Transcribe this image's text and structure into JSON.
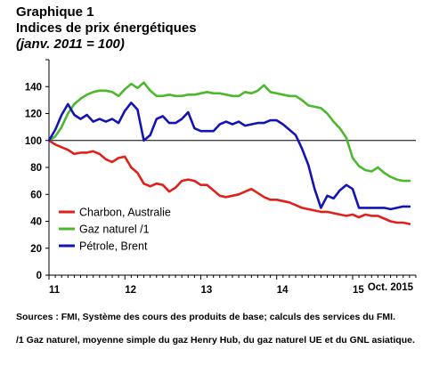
{
  "header": {
    "title": "Graphique 1",
    "subtitle": "Indices de prix énergétiques",
    "note": "(janv. 2011 = 100)"
  },
  "footer": {
    "sources": "Sources : FMI, Système des cours des produits de base; calculs des services du FMI.",
    "footnote": "/1 Gaz naturel, moyenne simple du gaz Henry Hub, du gaz naturel UE et du GNL asiatique."
  },
  "chart_data": {
    "type": "line",
    "title": "Indices de prix énergétiques",
    "xlabel": "",
    "ylabel": "",
    "ylim": [
      0,
      160
    ],
    "yticks": [
      0,
      20,
      40,
      60,
      80,
      100,
      120,
      140,
      160
    ],
    "ytick_labels": [
      "0",
      "20",
      "40",
      "60",
      "80",
      "100",
      "120",
      "140",
      ""
    ],
    "xlim": [
      2011.0,
      2015.8333
    ],
    "x_ticks": [
      {
        "x": 2011.0,
        "label": "11"
      },
      {
        "x": 2012.0,
        "label": "12"
      },
      {
        "x": 2013.0,
        "label": "13"
      },
      {
        "x": 2014.0,
        "label": "14"
      },
      {
        "x": 2015.0,
        "label": "15"
      }
    ],
    "x_end_label": "Oct. 2015",
    "reference_line": 100,
    "x_start": 2011.0,
    "x_step": 0.08333,
    "legend_placement": "lower-left",
    "grid": false,
    "series": [
      {
        "name": "Charbon, Australie",
        "color": "#e0201b",
        "values": [
          100,
          97,
          95,
          93,
          90,
          91,
          91,
          92,
          90,
          86,
          84,
          87,
          88,
          80,
          76,
          68,
          66,
          68,
          67,
          62,
          65,
          70,
          71,
          70,
          67,
          67,
          63,
          59,
          58,
          59,
          60,
          62,
          64,
          61,
          58,
          56,
          56,
          55,
          54,
          52,
          50,
          49,
          48,
          47,
          47,
          46,
          45,
          44,
          45,
          43,
          45,
          44,
          44,
          42,
          40,
          39,
          39,
          38
        ]
      },
      {
        "name": "Gaz naturel /1",
        "color": "#4cb82b",
        "values": [
          100,
          103,
          110,
          120,
          127,
          131,
          134,
          136,
          137,
          137,
          136,
          133,
          138,
          142,
          139,
          143,
          137,
          133,
          133,
          134,
          133,
          133,
          134,
          134,
          135,
          136,
          135,
          135,
          134,
          133,
          133,
          136,
          135,
          137,
          141,
          136,
          135,
          134,
          133,
          133,
          130,
          126,
          125,
          124,
          120,
          114,
          109,
          102,
          87,
          81,
          78,
          77,
          80,
          76,
          73,
          71,
          70,
          70
        ]
      },
      {
        "name": "Pétrole, Brent",
        "color": "#1414b4",
        "values": [
          100,
          108,
          119,
          127,
          119,
          116,
          119,
          114,
          116,
          114,
          116,
          113,
          122,
          128,
          123,
          100,
          104,
          116,
          118,
          113,
          113,
          116,
          121,
          109,
          107,
          107,
          107,
          112,
          114,
          112,
          114,
          111,
          112,
          113,
          113,
          115,
          115,
          112,
          108,
          104,
          94,
          82,
          64,
          50,
          59,
          57,
          63,
          67,
          64,
          50,
          50,
          50,
          50,
          50,
          49,
          50,
          51,
          51
        ]
      }
    ]
  }
}
